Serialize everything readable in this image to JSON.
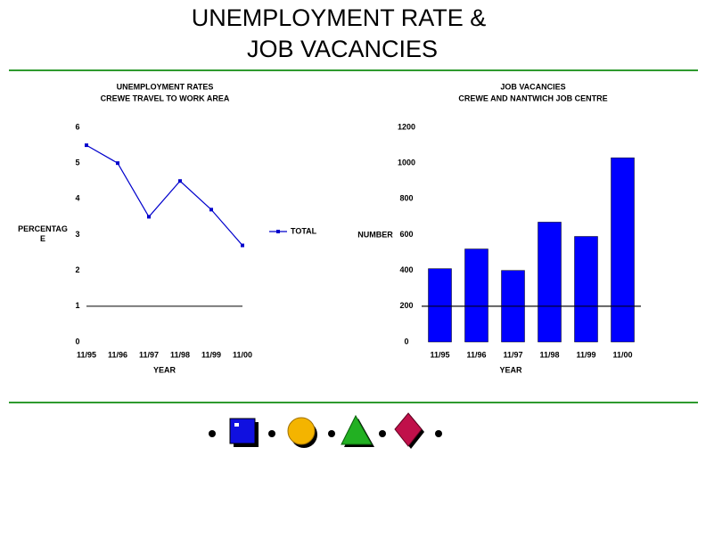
{
  "title_lines": [
    "UNEMPLOYMENT RATE &",
    "JOB VACANCIES"
  ],
  "chart_data": [
    {
      "type": "line",
      "title": "UNEMPLOYMENT RATES",
      "subtitle": "CREWE TRAVEL TO WORK AREA",
      "x_label": "YEAR",
      "y_label": "PERCENTAGE",
      "categories": [
        "11/95",
        "11/96",
        "11/97",
        "11/98",
        "11/99",
        "11/00"
      ],
      "series": [
        {
          "name": "TOTAL",
          "color": "#0000cc",
          "values": [
            5.5,
            5.0,
            3.5,
            4.5,
            3.7,
            2.7
          ]
        }
      ],
      "ylim": [
        0,
        6
      ],
      "yticks": [
        0,
        1,
        2,
        3,
        4,
        5,
        6
      ],
      "reference_line": 1,
      "legend": "right"
    },
    {
      "type": "bar",
      "title": "JOB VACANCIES",
      "subtitle": "CREWE AND NANTWICH JOB CENTRE",
      "x_label": "YEAR",
      "y_label": "NUMBER",
      "categories": [
        "11/95",
        "11/96",
        "11/97",
        "11/98",
        "11/99",
        "11/00"
      ],
      "values": [
        410,
        520,
        400,
        670,
        590,
        1030
      ],
      "color": "#0000ff",
      "ylim": [
        0,
        1200
      ],
      "yticks": [
        0,
        200,
        400,
        600,
        800,
        1000,
        1200
      ],
      "reference_line": 200
    }
  ]
}
